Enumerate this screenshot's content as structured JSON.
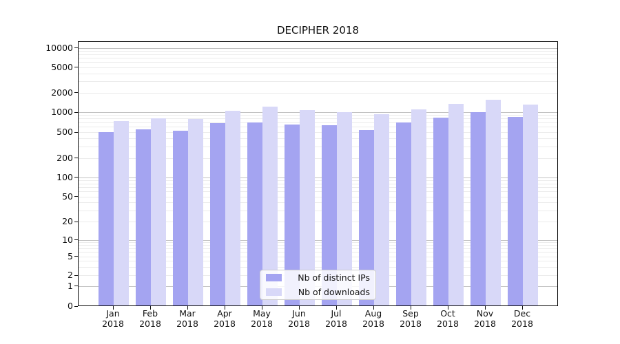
{
  "title": "DECIPHER 2018",
  "colors": {
    "distinct_ips": "#a4a4f1",
    "downloads": "#d8d8f8",
    "grid_major": "#c2c2c2",
    "grid_minor": "#ebebeb",
    "spine": "#000000",
    "text": "#111111"
  },
  "legend": {
    "items": [
      {
        "label": "Nb of distinct IPs",
        "color_key": "distinct_ips"
      },
      {
        "label": "Nb of downloads",
        "color_key": "downloads"
      }
    ]
  },
  "y_axis": {
    "ticks": [
      {
        "label": "10000",
        "value": 10000
      },
      {
        "label": "5000",
        "value": 5000
      },
      {
        "label": "2000",
        "value": 2000
      },
      {
        "label": "1000",
        "value": 1000
      },
      {
        "label": "500",
        "value": 500
      },
      {
        "label": "200",
        "value": 200
      },
      {
        "label": "100",
        "value": 100
      },
      {
        "label": "50",
        "value": 50
      },
      {
        "label": "20",
        "value": 20
      },
      {
        "label": "10",
        "value": 10
      },
      {
        "label": "5",
        "value": 5
      },
      {
        "label": "2",
        "value": 2
      },
      {
        "label": "1",
        "value": 1
      },
      {
        "label": "0",
        "value": 0
      }
    ]
  },
  "x_axis": {
    "ticks": [
      {
        "month": "Jan",
        "year": "2018"
      },
      {
        "month": "Feb",
        "year": "2018"
      },
      {
        "month": "Mar",
        "year": "2018"
      },
      {
        "month": "Apr",
        "year": "2018"
      },
      {
        "month": "May",
        "year": "2018"
      },
      {
        "month": "Jun",
        "year": "2018"
      },
      {
        "month": "Jul",
        "year": "2018"
      },
      {
        "month": "Aug",
        "year": "2018"
      },
      {
        "month": "Sep",
        "year": "2018"
      },
      {
        "month": "Oct",
        "year": "2018"
      },
      {
        "month": "Nov",
        "year": "2018"
      },
      {
        "month": "Dec",
        "year": "2018"
      }
    ]
  },
  "chart_data": {
    "type": "bar",
    "title": "DECIPHER 2018",
    "categories": [
      "Jan 2018",
      "Feb 2018",
      "Mar 2018",
      "Apr 2018",
      "May 2018",
      "Jun 2018",
      "Jul 2018",
      "Aug 2018",
      "Sep 2018",
      "Oct 2018",
      "Nov 2018",
      "Dec 2018"
    ],
    "series": [
      {
        "name": "Nb of distinct IPs",
        "values": [
          500,
          555,
          530,
          675,
          705,
          645,
          635,
          540,
          695,
          830,
          1000,
          850
        ]
      },
      {
        "name": "Nb of downloads",
        "values": [
          730,
          810,
          780,
          1040,
          1220,
          1070,
          1000,
          935,
          1100,
          1350,
          1560,
          1300
        ]
      }
    ],
    "xlabel": "",
    "ylabel": "",
    "yscale": "symlog",
    "ytick_values": [
      10000,
      5000,
      2000,
      1000,
      500,
      200,
      100,
      50,
      20,
      10,
      5,
      2,
      1,
      0
    ],
    "ylim": [
      0,
      13000
    ],
    "grid": "horizontal major and minor gridlines",
    "legend_position": "lower center inside plot"
  }
}
